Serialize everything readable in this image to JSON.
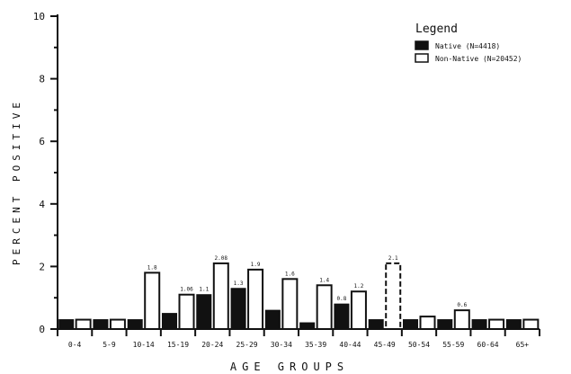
{
  "chart_data": {
    "type": "bar",
    "title": "",
    "xlabel": "AGE GROUPS",
    "ylabel": "PERCENT POSITIVE",
    "ylim": [
      0,
      10
    ],
    "yticks": [
      0,
      2,
      4,
      6,
      8,
      10
    ],
    "grid": false,
    "legend_position": "top-right",
    "legend_title": "Legend",
    "categories": [
      "0-4",
      "5-9",
      "10-14",
      "15-19",
      "20-24",
      "25-29",
      "30-34",
      "35-39",
      "40-44",
      "45-49",
      "50-54",
      "55-59",
      "60-64",
      "65+"
    ],
    "series": [
      {
        "name": "Native (N=4418)",
        "color": "#111111",
        "values": [
          0.3,
          0.3,
          0.3,
          0.5,
          1.1,
          1.3,
          0.6,
          0.2,
          0.8,
          0.3,
          0.3,
          0.3,
          0.3,
          0.3
        ],
        "labels": [
          "",
          "",
          "",
          "",
          "1.1",
          "1.3",
          "",
          "",
          "0.8",
          "",
          "",
          "",
          "",
          ""
        ]
      },
      {
        "name": "Non-Native (N=20452)",
        "color": "#ffffff",
        "values": [
          0.3,
          0.3,
          1.8,
          1.1,
          2.1,
          1.9,
          1.6,
          1.4,
          1.2,
          2.1,
          0.4,
          0.6,
          0.3,
          0.3
        ],
        "labels": [
          "",
          "",
          "1.8",
          "1.06",
          "2.08",
          "1.9",
          "1.6",
          "1.4",
          "1.2",
          "2.1",
          "",
          "0.6",
          "",
          ""
        ]
      }
    ]
  }
}
